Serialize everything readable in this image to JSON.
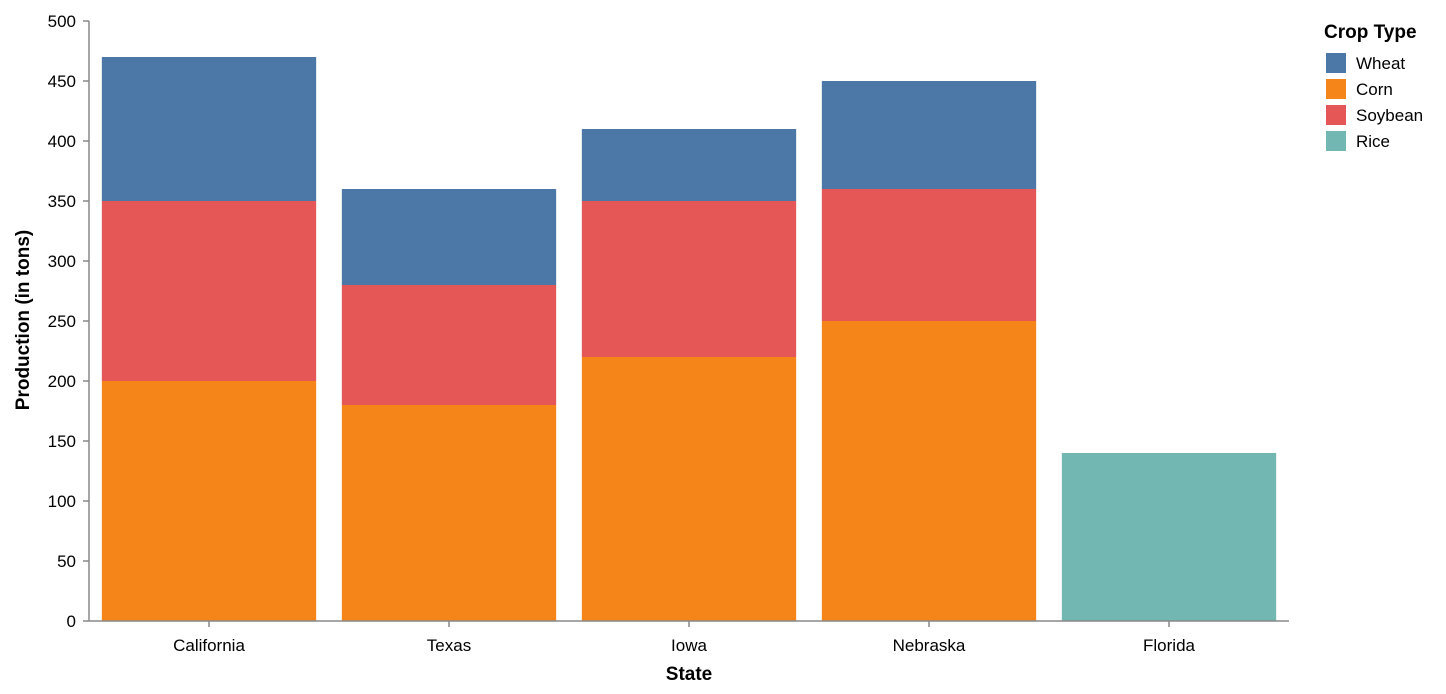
{
  "chart_data": {
    "type": "bar",
    "stacked": true,
    "xlabel": "State",
    "ylabel": "Production (in tons)",
    "ylim": [
      0,
      500
    ],
    "yticks": [
      0,
      50,
      100,
      150,
      200,
      250,
      300,
      350,
      400,
      450,
      500
    ],
    "categories": [
      "California",
      "Texas",
      "Iowa",
      "Nebraska",
      "Florida"
    ],
    "series": [
      {
        "name": "Corn",
        "color": "#f58518",
        "values": [
          200,
          180,
          220,
          250,
          0
        ]
      },
      {
        "name": "Soybean",
        "color": "#e45756",
        "values": [
          150,
          100,
          130,
          110,
          0
        ]
      },
      {
        "name": "Wheat",
        "color": "#4c78a8",
        "values": [
          120,
          80,
          60,
          90,
          0
        ]
      },
      {
        "name": "Rice",
        "color": "#72b7b2",
        "values": [
          0,
          0,
          0,
          0,
          140
        ]
      }
    ],
    "legend": {
      "title": "Crop Type",
      "position": "top-right",
      "order": [
        "Wheat",
        "Corn",
        "Soybean",
        "Rice"
      ]
    },
    "grid": false
  }
}
